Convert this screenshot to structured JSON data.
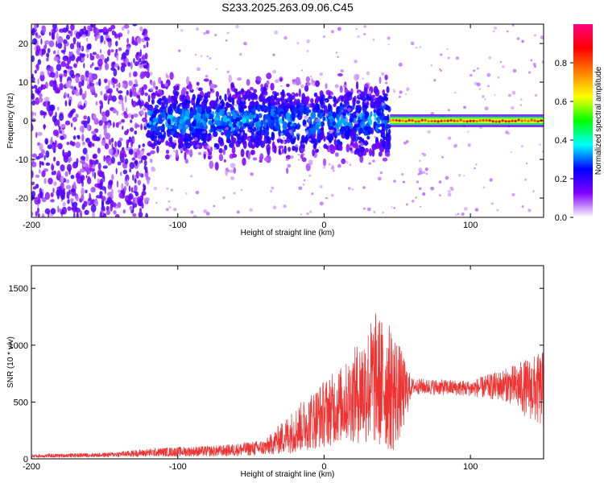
{
  "title": "S233.2025.263.09.06.C45",
  "chart_data": [
    {
      "type": "heatmap",
      "xlabel": "Height of straight line (km)",
      "ylabel": "Frequency (Hz)",
      "xlim": [
        -200,
        150
      ],
      "ylim": [
        -25,
        25
      ],
      "x_ticks": [
        -200,
        -100,
        0,
        100
      ],
      "y_ticks": [
        20,
        10,
        0,
        -10,
        -20
      ],
      "colorbar": {
        "label": "Normalized spectral amplitude",
        "range": [
          0,
          1
        ],
        "ticks": [
          "0.0",
          "0.2",
          "0.4",
          "0.6",
          "0.8"
        ],
        "colors": [
          "#ffffff",
          "#8000ff",
          "#0000ff",
          "#00ffff",
          "#00ff00",
          "#ffff00",
          "#ff8000",
          "#ff0000",
          "#ff0080"
        ]
      },
      "features": [
        {
          "x_range": [
            -200,
            -120
          ],
          "freq_range": [
            -25,
            25
          ],
          "amplitude": 0.15,
          "description": "broadband scatter"
        },
        {
          "x_range": [
            -120,
            45
          ],
          "freq_range": [
            -10,
            10
          ],
          "amplitude": 0.25,
          "description": "clustered energy near 0 Hz"
        },
        {
          "x_range": [
            45,
            150
          ],
          "freq_center": 0,
          "amplitude": 0.9,
          "description": "narrow line near 0 Hz"
        }
      ]
    },
    {
      "type": "line",
      "xlabel": "Height of straight line (km)",
      "ylabel": "SNR (10 * v/v)",
      "xlim": [
        -200,
        150
      ],
      "ylim": [
        0,
        1700
      ],
      "x_ticks": [
        -200,
        -100,
        0,
        100
      ],
      "y_ticks": [
        1500,
        1000,
        500,
        0
      ],
      "color": "#ee3333",
      "envelope": [
        {
          "x": -200,
          "mean": 25,
          "spread": 15
        },
        {
          "x": -150,
          "mean": 35,
          "spread": 20
        },
        {
          "x": -110,
          "mean": 60,
          "spread": 40
        },
        {
          "x": -70,
          "mean": 70,
          "spread": 50
        },
        {
          "x": -40,
          "mean": 100,
          "spread": 70
        },
        {
          "x": -20,
          "mean": 250,
          "spread": 200
        },
        {
          "x": 0,
          "mean": 400,
          "spread": 300
        },
        {
          "x": 15,
          "mean": 500,
          "spread": 350
        },
        {
          "x": 35,
          "mean": 700,
          "spread": 600
        },
        {
          "x": 48,
          "mean": 600,
          "spread": 550
        },
        {
          "x": 55,
          "mean": 580,
          "spread": 300
        },
        {
          "x": 60,
          "mean": 640,
          "spread": 70
        },
        {
          "x": 100,
          "mean": 620,
          "spread": 70
        },
        {
          "x": 125,
          "mean": 650,
          "spread": 150
        },
        {
          "x": 150,
          "mean": 600,
          "spread": 350
        }
      ]
    }
  ]
}
